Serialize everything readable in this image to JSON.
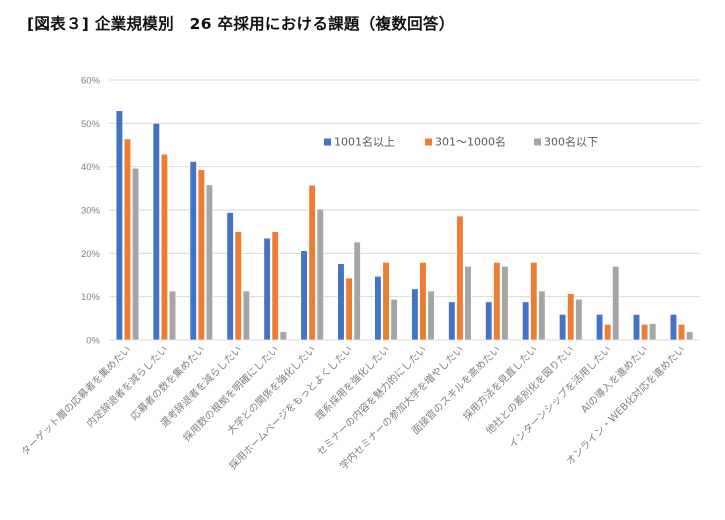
{
  "title": "[図表３] 企業規模別　26 卒採用における課題（複数回答）",
  "colors": {
    "series_1": "#4472C4",
    "series_2": "#ED7D31",
    "series_3": "#A5A5A5",
    "gridline": "#D9D9D9",
    "axis_text": "#7F7F7F"
  },
  "chart_data": {
    "type": "bar",
    "title": "[図表３] 企業規模別　26 卒採用における課題（複数回答）",
    "xlabel": "",
    "ylabel": "",
    "ylim": [
      0,
      60
    ],
    "yticks": [
      "0%",
      "10%",
      "20%",
      "30%",
      "40%",
      "50%",
      "60%"
    ],
    "grid": true,
    "legend_position": "top-inside",
    "categories": [
      "ターゲット層の応募者を集めたい",
      "内定辞退者を減らしたい",
      "応募者の数を集めたい",
      "選考辞退者を減らしたい",
      "採用数の根拠を明確にしたい",
      "大学との関係を強化したい",
      "採用ホームページをもっとよくしたい",
      "理系採用を強化したい",
      "セミナーの内容を魅力的にしたい",
      "学内セミナーの参加大学を増やしたい",
      "面接官のスキルを高めたい",
      "採用方法を見直したい",
      "他社との差別化を図りたい",
      "インターンシップを活用したい",
      "AIの導入を進めたい",
      "オンライン・WEB化対応を進めたい"
    ],
    "series": [
      {
        "name": "1001名以上",
        "values": [
          52.9,
          50.0,
          41.2,
          29.4,
          23.5,
          20.6,
          17.6,
          14.7,
          11.8,
          8.8,
          8.8,
          8.8,
          5.9,
          5.9,
          5.9,
          5.9
        ]
      },
      {
        "name": "301～1000名",
        "values": [
          46.4,
          42.9,
          39.3,
          25.0,
          25.0,
          35.7,
          14.3,
          17.9,
          17.9,
          28.6,
          17.9,
          17.9,
          10.7,
          3.6,
          3.6,
          3.6
        ]
      },
      {
        "name": "300名以下",
        "values": [
          39.6,
          11.3,
          35.8,
          11.3,
          1.9,
          30.2,
          22.6,
          9.4,
          11.3,
          17.0,
          17.0,
          11.3,
          9.4,
          17.0,
          3.8,
          1.9
        ]
      }
    ]
  }
}
